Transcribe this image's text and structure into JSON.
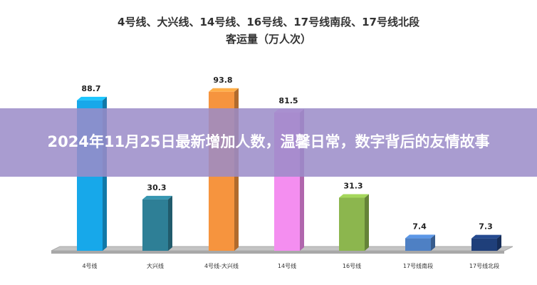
{
  "chart_data": {
    "type": "bar",
    "title_line1": "4号线、大兴线、14号线、16号线、17号线南段、17号线北段",
    "title_line2": "客运量（万人次）",
    "categories": [
      "4号线",
      "大兴线",
      "4号线-大兴线",
      "14号线",
      "16号线",
      "17号线南段",
      "17号线北段"
    ],
    "values": [
      88.7,
      30.3,
      93.8,
      81.5,
      31.3,
      7.4,
      7.3
    ],
    "data_labels": [
      "88.7",
      "30.3",
      "93.8",
      "81.5",
      "31.3",
      "7.4",
      "7.3"
    ],
    "colors": [
      "#17a8ea",
      "#2e7f96",
      "#f6943e",
      "#f48ef0",
      "#8cb64e",
      "#4e80c4",
      "#1f3f7a"
    ],
    "ylim": [
      0,
      100
    ],
    "grid": false,
    "legend": "none"
  },
  "banner": {
    "text": "2024年11月25日最新增加人数，温馨日常，数字背后的友情故事"
  }
}
